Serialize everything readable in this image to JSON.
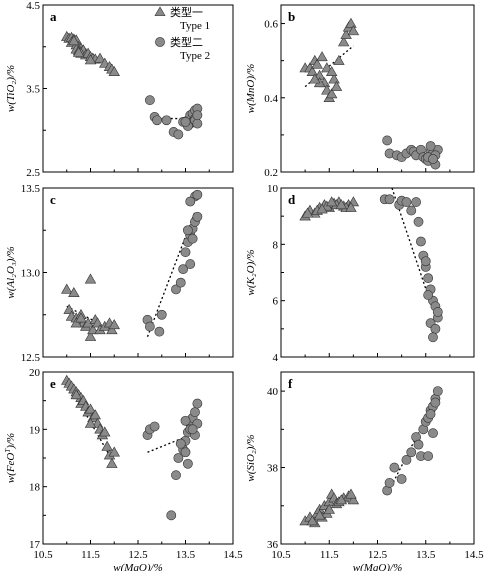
{
  "legend": {
    "type1": "类型一\nType 1",
    "type2": "类型二\nType 2"
  },
  "chart_data": [
    {
      "panel": "a",
      "type": "scatter",
      "xlabel": "",
      "ylabel": "w(TiO₂)/%",
      "xlim": [
        10.5,
        14.5
      ],
      "ylim": [
        2.5,
        4.5
      ],
      "yticks": [
        2.5,
        3.5,
        4.5
      ],
      "xticks": [],
      "series": [
        {
          "name": "Type 1",
          "marker": "triangle",
          "x": [
            11.0,
            11.05,
            11.1,
            11.15,
            11.2,
            11.1,
            11.2,
            11.25,
            11.3,
            11.2,
            11.25,
            11.3,
            11.35,
            11.3,
            11.4,
            11.45,
            11.5,
            11.55,
            11.6,
            11.5,
            11.7,
            11.8,
            11.9,
            11.95,
            12.0,
            11.15,
            11.25
          ],
          "y": [
            4.12,
            4.1,
            4.11,
            4.09,
            4.08,
            4.05,
            4.02,
            4.0,
            3.98,
            3.97,
            3.95,
            3.94,
            3.96,
            3.92,
            3.9,
            3.92,
            3.88,
            3.86,
            3.85,
            3.84,
            3.86,
            3.8,
            3.76,
            3.73,
            3.7,
            4.07,
            3.93
          ]
        },
        {
          "name": "Type 2",
          "marker": "circle",
          "x": [
            12.75,
            12.85,
            12.9,
            13.1,
            13.25,
            13.35,
            13.45,
            13.55,
            13.6,
            13.65,
            13.7,
            13.75,
            13.7,
            13.6,
            13.65,
            13.7,
            13.75,
            13.55,
            13.5,
            13.75
          ],
          "y": [
            3.36,
            3.16,
            3.12,
            3.12,
            2.98,
            2.95,
            3.1,
            3.12,
            3.18,
            3.2,
            3.24,
            3.26,
            3.14,
            3.08,
            3.1,
            3.12,
            3.08,
            3.05,
            3.1,
            3.18
          ]
        }
      ],
      "fits": [
        {
          "x": [
            11.0,
            12.0
          ],
          "y": [
            4.14,
            3.72
          ]
        },
        {
          "x": [
            13.0,
            13.8
          ],
          "y": [
            3.14,
            3.14
          ]
        }
      ]
    },
    {
      "panel": "b",
      "type": "scatter",
      "xlabel": "",
      "ylabel": "w(MnO)/%",
      "xlim": [
        10.5,
        14.5
      ],
      "ylim": [
        0.2,
        0.65
      ],
      "yticks": [
        0.2,
        0.4,
        0.6
      ],
      "xticks": [],
      "series": [
        {
          "name": "Type 1",
          "marker": "triangle",
          "x": [
            11.0,
            11.1,
            11.15,
            11.2,
            11.25,
            11.3,
            11.35,
            11.4,
            11.45,
            11.5,
            11.3,
            11.45,
            11.55,
            11.6,
            11.65,
            11.7,
            11.8,
            11.85,
            11.9,
            11.95,
            12.0,
            11.2,
            11.55
          ],
          "y": [
            0.48,
            0.48,
            0.47,
            0.5,
            0.49,
            0.46,
            0.51,
            0.44,
            0.42,
            0.4,
            0.44,
            0.48,
            0.41,
            0.45,
            0.43,
            0.5,
            0.55,
            0.57,
            0.59,
            0.6,
            0.58,
            0.45,
            0.47
          ]
        },
        {
          "name": "Type 2",
          "marker": "circle",
          "x": [
            12.7,
            12.75,
            12.9,
            13.0,
            13.1,
            13.2,
            13.25,
            13.3,
            13.4,
            13.45,
            13.5,
            13.55,
            13.6,
            13.65,
            13.7,
            13.75,
            13.6,
            13.55,
            13.7,
            13.65
          ],
          "y": [
            0.285,
            0.25,
            0.245,
            0.24,
            0.25,
            0.26,
            0.255,
            0.245,
            0.26,
            0.24,
            0.235,
            0.23,
            0.255,
            0.25,
            0.22,
            0.26,
            0.27,
            0.24,
            0.245,
            0.235
          ]
        }
      ],
      "fits": [
        {
          "x": [
            11.0,
            12.0
          ],
          "y": [
            0.43,
            0.54
          ]
        },
        {
          "x": [
            12.8,
            13.8
          ],
          "y": [
            0.25,
            0.25
          ]
        }
      ]
    },
    {
      "panel": "c",
      "type": "scatter",
      "xlabel": "",
      "ylabel": "w(Al₂O₃)/%",
      "xlim": [
        10.5,
        14.5
      ],
      "ylim": [
        12.5,
        13.5
      ],
      "yticks": [
        12.5,
        13.0,
        13.5
      ],
      "xticks": [],
      "series": [
        {
          "name": "Type 1",
          "marker": "triangle",
          "x": [
            11.0,
            11.05,
            11.15,
            11.1,
            11.2,
            11.25,
            11.3,
            11.35,
            11.4,
            11.45,
            11.5,
            11.55,
            11.6,
            11.65,
            11.7,
            11.8,
            11.9,
            11.95,
            12.0,
            11.5,
            11.2,
            11.3
          ],
          "y": [
            12.9,
            12.78,
            12.88,
            12.74,
            12.73,
            12.72,
            12.75,
            12.7,
            12.68,
            12.7,
            12.62,
            12.66,
            12.72,
            12.7,
            12.66,
            12.68,
            12.7,
            12.66,
            12.69,
            12.96,
            12.7,
            12.73
          ]
        },
        {
          "name": "Type 2",
          "marker": "circle",
          "x": [
            12.7,
            12.75,
            12.95,
            13.3,
            13.4,
            13.45,
            13.5,
            13.55,
            13.6,
            13.65,
            13.7,
            13.75,
            13.7,
            13.6,
            13.55,
            13.65,
            13.75,
            13.6,
            13.0
          ],
          "y": [
            12.72,
            12.68,
            12.65,
            12.9,
            12.94,
            13.02,
            13.12,
            13.18,
            13.22,
            13.26,
            13.3,
            13.33,
            13.45,
            13.42,
            13.25,
            13.2,
            13.46,
            13.05,
            12.75
          ]
        }
      ],
      "fits": [
        {
          "x": [
            11.0,
            12.0
          ],
          "y": [
            12.8,
            12.65
          ]
        },
        {
          "x": [
            12.7,
            13.7
          ],
          "y": [
            12.62,
            13.36
          ]
        }
      ]
    },
    {
      "panel": "d",
      "type": "scatter",
      "xlabel": "",
      "ylabel": "w(K₂O)/%",
      "xlim": [
        10.5,
        14.5
      ],
      "ylim": [
        4,
        10
      ],
      "yticks": [
        4,
        6,
        8,
        10
      ],
      "xticks": [],
      "series": [
        {
          "name": "Type 1",
          "marker": "triangle",
          "x": [
            11.0,
            11.1,
            11.2,
            11.3,
            11.4,
            11.5,
            11.6,
            11.7,
            11.8,
            11.9,
            12.0,
            11.25,
            11.45,
            11.65,
            11.85,
            11.05,
            11.35,
            11.55,
            11.75,
            11.95
          ],
          "y": [
            9.0,
            9.2,
            9.1,
            9.3,
            9.4,
            9.3,
            9.45,
            9.5,
            9.35,
            9.4,
            9.5,
            9.2,
            9.35,
            9.4,
            9.3,
            9.1,
            9.25,
            9.5,
            9.4,
            9.3
          ]
        },
        {
          "name": "Type 2",
          "marker": "circle",
          "x": [
            12.65,
            12.75,
            12.95,
            13.0,
            13.1,
            13.2,
            13.3,
            13.35,
            13.4,
            13.45,
            13.5,
            13.55,
            13.6,
            13.65,
            13.7,
            13.75,
            13.6,
            13.55,
            13.7,
            13.65,
            13.5,
            13.75
          ],
          "y": [
            9.6,
            9.6,
            9.4,
            9.55,
            9.5,
            9.2,
            9.5,
            8.8,
            8.1,
            7.6,
            7.2,
            6.8,
            6.4,
            6.0,
            5.8,
            5.4,
            5.2,
            6.2,
            5.0,
            4.7,
            7.4,
            5.6
          ]
        }
      ],
      "fits": [
        {
          "x": [
            12.8,
            13.7
          ],
          "y": [
            10.0,
            5.4
          ]
        }
      ]
    },
    {
      "panel": "e",
      "type": "scatter",
      "xlabel": "w(MgO)/%",
      "ylabel": "w(FeO^T)/%",
      "xlim": [
        10.5,
        14.5
      ],
      "ylim": [
        17,
        20
      ],
      "yticks": [
        17,
        18,
        19,
        20
      ],
      "xticks": [
        10.5,
        11.5,
        12.5,
        13.5,
        14.5
      ],
      "series": [
        {
          "name": "Type 1",
          "marker": "triangle",
          "x": [
            11.0,
            11.05,
            11.1,
            11.15,
            11.2,
            11.25,
            11.3,
            11.3,
            11.35,
            11.4,
            11.45,
            11.5,
            11.55,
            11.6,
            11.65,
            11.7,
            11.75,
            11.8,
            11.85,
            11.9,
            11.95,
            12.0,
            11.2,
            11.5
          ],
          "y": [
            19.85,
            19.8,
            19.75,
            19.7,
            19.65,
            19.6,
            19.55,
            19.45,
            19.5,
            19.4,
            19.3,
            19.35,
            19.2,
            19.25,
            19.1,
            19.0,
            18.9,
            18.95,
            18.7,
            18.55,
            18.4,
            18.6,
            19.6,
            19.1
          ]
        },
        {
          "name": "Type 2",
          "marker": "circle",
          "x": [
            12.7,
            12.75,
            12.85,
            13.2,
            13.3,
            13.35,
            13.45,
            13.5,
            13.55,
            13.6,
            13.65,
            13.7,
            13.75,
            13.55,
            13.6,
            13.5,
            13.7,
            13.75,
            13.4,
            13.65,
            13.5
          ],
          "y": [
            18.9,
            19.0,
            19.05,
            17.5,
            18.2,
            18.5,
            18.65,
            18.8,
            18.95,
            19.1,
            19.2,
            19.3,
            19.45,
            18.4,
            19.0,
            18.6,
            18.9,
            19.1,
            18.75,
            19.0,
            19.15
          ]
        }
      ],
      "fits": [
        {
          "x": [
            11.0,
            12.0
          ],
          "y": [
            19.85,
            18.4
          ]
        },
        {
          "x": [
            12.7,
            13.75
          ],
          "y": [
            18.6,
            18.95
          ]
        }
      ]
    },
    {
      "panel": "f",
      "type": "scatter",
      "xlabel": "w(MgO)/%",
      "ylabel": "w(SiO₂)/%",
      "xlim": [
        10.5,
        14.5
      ],
      "ylim": [
        36,
        40.5
      ],
      "yticks": [
        36,
        38,
        40
      ],
      "xticks": [
        10.5,
        11.5,
        12.5,
        13.5,
        14.5
      ],
      "series": [
        {
          "name": "Type 1",
          "marker": "triangle",
          "x": [
            11.0,
            11.1,
            11.2,
            11.25,
            11.3,
            11.35,
            11.4,
            11.45,
            11.5,
            11.55,
            11.6,
            11.65,
            11.7,
            11.8,
            11.9,
            12.0,
            11.15,
            11.5,
            11.75,
            11.95,
            11.3
          ],
          "y": [
            36.6,
            36.7,
            36.55,
            36.8,
            36.9,
            36.7,
            37.0,
            36.8,
            37.1,
            37.3,
            37.2,
            37.05,
            37.1,
            37.2,
            37.25,
            37.15,
            36.6,
            36.9,
            37.15,
            37.3,
            36.75
          ]
        },
        {
          "name": "Type 2",
          "marker": "circle",
          "x": [
            12.7,
            12.75,
            12.85,
            13.0,
            13.1,
            13.2,
            13.3,
            13.35,
            13.4,
            13.45,
            13.5,
            13.55,
            13.6,
            13.65,
            13.7,
            13.75,
            13.65,
            13.55,
            13.6,
            13.7
          ],
          "y": [
            37.4,
            37.6,
            38.0,
            37.7,
            38.2,
            38.4,
            38.8,
            38.6,
            38.3,
            39.0,
            39.2,
            39.3,
            39.5,
            39.6,
            39.8,
            40.0,
            38.9,
            38.3,
            39.4,
            39.7
          ]
        }
      ],
      "fits": [
        {
          "x": [
            11.0,
            12.0
          ],
          "y": [
            36.6,
            37.3
          ]
        },
        {
          "x": [
            12.7,
            13.75
          ],
          "y": [
            37.3,
            39.9
          ]
        }
      ]
    }
  ]
}
